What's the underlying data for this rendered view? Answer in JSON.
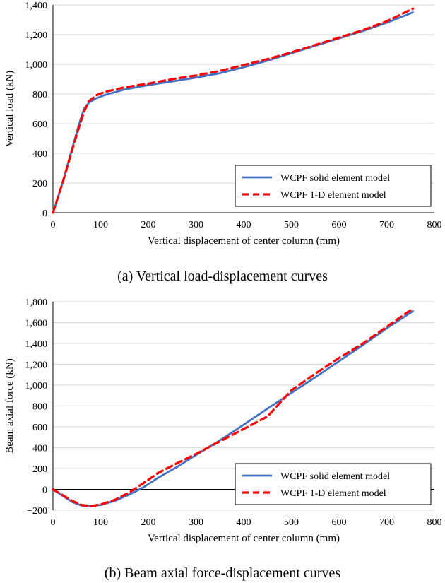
{
  "chart_data": [
    {
      "type": "line",
      "caption": "(a) Vertical load-displacement curves",
      "xlabel": "Vertical displacement of center column (mm)",
      "ylabel": "Vertical load (kN)",
      "xlim": [
        0,
        800
      ],
      "ylim": [
        0,
        1400
      ],
      "xticks": [
        "0",
        "100",
        "200",
        "300",
        "400",
        "500",
        "600",
        "700",
        "800"
      ],
      "yticks": [
        "0",
        "200",
        "400",
        "600",
        "800",
        "1,000",
        "1,200",
        "1,400"
      ],
      "grid": "horizontal",
      "legend_position": "bottom-right",
      "series": [
        {
          "name": "WCPF solid element model",
          "color": "#4472C4",
          "style": "solid",
          "x": [
            0,
            20,
            40,
            55,
            65,
            75,
            90,
            110,
            150,
            200,
            250,
            300,
            350,
            400,
            450,
            500,
            550,
            600,
            650,
            700,
            755
          ],
          "y": [
            0,
            200,
            430,
            600,
            700,
            740,
            770,
            795,
            830,
            860,
            885,
            910,
            940,
            980,
            1025,
            1075,
            1125,
            1175,
            1225,
            1280,
            1350
          ]
        },
        {
          "name": "WCPF 1-D element model",
          "color": "#FF0000",
          "style": "dashed",
          "x": [
            0,
            20,
            40,
            55,
            65,
            75,
            90,
            110,
            150,
            200,
            250,
            300,
            350,
            400,
            450,
            500,
            550,
            600,
            650,
            700,
            755
          ],
          "y": [
            0,
            200,
            420,
            580,
            680,
            750,
            790,
            815,
            845,
            870,
            900,
            925,
            955,
            995,
            1035,
            1080,
            1130,
            1180,
            1230,
            1290,
            1375
          ]
        }
      ]
    },
    {
      "type": "line",
      "caption": "(b) Beam axial force-displacement curves",
      "xlabel": "Vertical displacement of center column (mm)",
      "ylabel": "Beam axial force (kN)",
      "xlim": [
        0,
        800
      ],
      "ylim": [
        -200,
        1800
      ],
      "xticks": [
        "0",
        "100",
        "200",
        "300",
        "400",
        "500",
        "600",
        "700",
        "800"
      ],
      "yticks": [
        "−200",
        "0",
        "200",
        "400",
        "600",
        "800",
        "1,000",
        "1,200",
        "1,400",
        "1,600",
        "1,800"
      ],
      "grid": "horizontal",
      "legend_position": "bottom-right",
      "series": [
        {
          "name": "WCPF solid element model",
          "color": "#4472C4",
          "style": "solid",
          "x": [
            0,
            20,
            40,
            60,
            80,
            100,
            130,
            160,
            190,
            220,
            260,
            300,
            350,
            400,
            450,
            500,
            550,
            600,
            650,
            700,
            755
          ],
          "y": [
            0,
            -60,
            -120,
            -155,
            -160,
            -150,
            -110,
            -50,
            20,
            110,
            215,
            330,
            470,
            620,
            775,
            925,
            1075,
            1230,
            1385,
            1545,
            1710
          ]
        },
        {
          "name": "WCPF 1-D element model",
          "color": "#FF0000",
          "style": "dashed",
          "x": [
            0,
            20,
            40,
            60,
            80,
            100,
            130,
            160,
            190,
            220,
            260,
            300,
            350,
            400,
            450,
            500,
            550,
            600,
            650,
            700,
            755
          ],
          "y": [
            0,
            -55,
            -110,
            -150,
            -160,
            -145,
            -100,
            -30,
            60,
            155,
            250,
            340,
            460,
            580,
            700,
            950,
            1110,
            1260,
            1400,
            1560,
            1735
          ]
        }
      ]
    }
  ]
}
